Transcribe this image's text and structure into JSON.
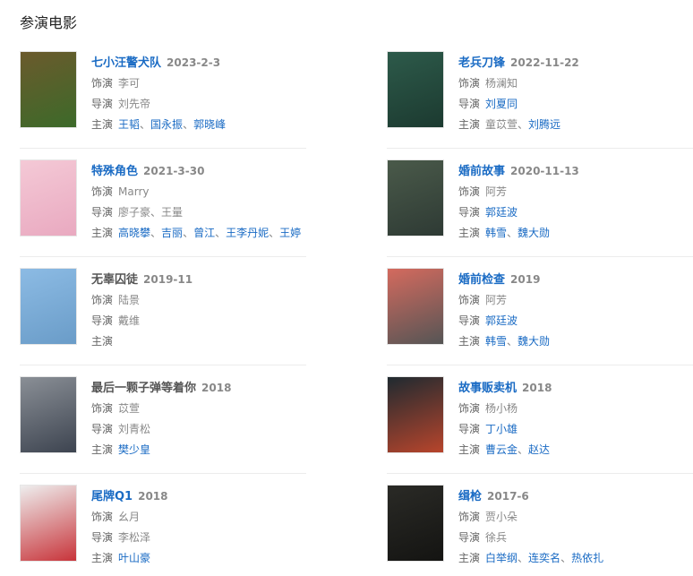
{
  "section_title": "参演电影",
  "labels": {
    "role": "饰演",
    "director": "导演",
    "cast": "主演"
  },
  "movies": [
    {
      "title": "七小汪警犬队",
      "title_link": true,
      "date": "2023-2-3",
      "poster_colors": [
        "#6b5a2c",
        "#3c6a2a"
      ],
      "role": "李可",
      "director": [
        {
          "name": "刘先帝",
          "link": false
        }
      ],
      "cast": [
        {
          "name": "王韬",
          "link": true
        },
        {
          "name": "国永振",
          "link": true
        },
        {
          "name": "郭晓峰",
          "link": true
        }
      ]
    },
    {
      "title": "老兵刀锋",
      "title_link": true,
      "date": "2022-11-22",
      "poster_colors": [
        "#2d5a4a",
        "#1c3a30"
      ],
      "role": "杨澜知",
      "director": [
        {
          "name": "刘夏同",
          "link": true
        }
      ],
      "cast": [
        {
          "name": "童苡萱",
          "link": false
        },
        {
          "name": "刘腾远",
          "link": true
        }
      ]
    },
    {
      "title": "特殊角色",
      "title_link": true,
      "date": "2021-3-30",
      "poster_colors": [
        "#f4c9d6",
        "#e9a9c0"
      ],
      "role": "Marry",
      "director": [
        {
          "name": "廖子豪",
          "link": false
        },
        {
          "name": "王量",
          "link": false
        }
      ],
      "cast": [
        {
          "name": "高晓攀",
          "link": true
        },
        {
          "name": "吉丽",
          "link": true
        },
        {
          "name": "曾江",
          "link": true
        },
        {
          "name": "王李丹妮",
          "link": true
        },
        {
          "name": "王婷",
          "link": true
        }
      ]
    },
    {
      "title": "婚前故事",
      "title_link": true,
      "date": "2020-11-13",
      "poster_colors": [
        "#4a5a4a",
        "#2e3a34"
      ],
      "role": "阿芳",
      "director": [
        {
          "name": "郭廷波",
          "link": true
        }
      ],
      "cast": [
        {
          "name": "韩雪",
          "link": true
        },
        {
          "name": "魏大勋",
          "link": true
        }
      ]
    },
    {
      "title": "无辜囚徒",
      "title_link": false,
      "date": "2019-11",
      "poster_colors": [
        "#8cbbe4",
        "#6a9cc8"
      ],
      "role": "陆景",
      "director": [
        {
          "name": "戴维",
          "link": false
        }
      ],
      "cast": []
    },
    {
      "title": "婚前检查",
      "title_link": true,
      "date": "2019",
      "poster_colors": [
        "#d46a5e",
        "#555"
      ],
      "role": "阿芳",
      "director": [
        {
          "name": "郭廷波",
          "link": true
        }
      ],
      "cast": [
        {
          "name": "韩雪",
          "link": true
        },
        {
          "name": "魏大勋",
          "link": true
        }
      ]
    },
    {
      "title": "最后一颗子弹等着你",
      "title_link": false,
      "date": "2018",
      "poster_colors": [
        "#8a8f96",
        "#3d4450"
      ],
      "role": "苡萱",
      "director": [
        {
          "name": "刘青松",
          "link": false
        }
      ],
      "cast": [
        {
          "name": "樊少皇",
          "link": true
        }
      ]
    },
    {
      "title": "故事贩卖机",
      "title_link": true,
      "date": "2018",
      "poster_colors": [
        "#1f2a30",
        "#b8452c"
      ],
      "role": "杨小杨",
      "director": [
        {
          "name": "丁小雄",
          "link": true
        }
      ],
      "cast": [
        {
          "name": "曹云金",
          "link": true
        },
        {
          "name": "赵达",
          "link": true
        }
      ]
    },
    {
      "title": "尾牌Q1",
      "title_link": true,
      "date": "2018",
      "poster_colors": [
        "#eeeeee",
        "#c8343a"
      ],
      "role": "幺月",
      "director": [
        {
          "name": "李松泽",
          "link": false
        }
      ],
      "cast": [
        {
          "name": "叶山豪",
          "link": true
        }
      ]
    },
    {
      "title": "缉枪",
      "title_link": true,
      "date": "2017-6",
      "poster_colors": [
        "#2a2a26",
        "#141412"
      ],
      "role": "贾小朵",
      "director": [
        {
          "name": "徐兵",
          "link": false
        }
      ],
      "cast": [
        {
          "name": "白举纲",
          "link": true
        },
        {
          "name": "连奕名",
          "link": true
        },
        {
          "name": "热依扎",
          "link": true
        }
      ]
    }
  ]
}
